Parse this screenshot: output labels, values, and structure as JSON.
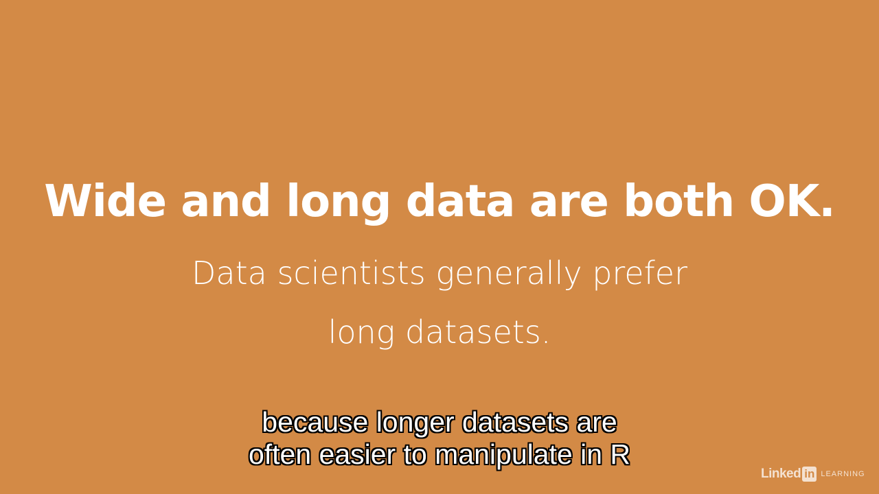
{
  "slide": {
    "background_color": "#D38A46",
    "headline": "Wide and long data are both OK.",
    "subtext_lines": [
      "Data scientists generally prefer",
      "long datasets."
    ]
  },
  "caption": {
    "lines": [
      "because longer datasets are",
      "often easier to manipulate in R"
    ]
  },
  "watermark": {
    "linked": "Linked",
    "in": "in",
    "learning": "LEARNING"
  }
}
